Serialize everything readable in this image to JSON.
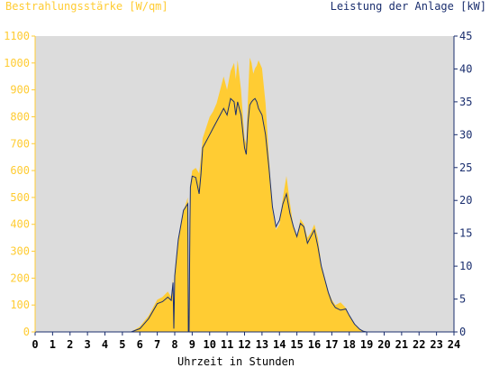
{
  "chart_data": {
    "type": "area",
    "title_left": "Bestrahlungsstärke [W/qm]",
    "title_right": "Leistung der Anlage [kW]",
    "xlabel": "Uhrzeit in Stunden",
    "x_ticks": [
      "0",
      "1",
      "2",
      "3",
      "4",
      "5",
      "6",
      "7",
      "8",
      "9",
      "10",
      "11",
      "12",
      "13",
      "14",
      "15",
      "16",
      "17",
      "18",
      "19",
      "20",
      "21",
      "22",
      "23",
      "24"
    ],
    "y_left_ticks": [
      "0",
      "100",
      "200",
      "300",
      "400",
      "500",
      "600",
      "700",
      "800",
      "900",
      "1000",
      "1100"
    ],
    "y_right_ticks": [
      "0",
      "5",
      "10",
      "15",
      "20",
      "25",
      "30",
      "35",
      "40",
      "45"
    ],
    "xlim": [
      0,
      24
    ],
    "ylim_left": [
      0,
      1100
    ],
    "ylim_right": [
      0,
      45
    ],
    "grid": false,
    "colors": {
      "plot_bg": "#dcdcdc",
      "irradiance_fill": "#ffcc33",
      "left_axis_text": "#ffcc33",
      "right_axis_text": "#1a2e6e",
      "power_line": "#1a2e6e"
    },
    "series": [
      {
        "axis": "left",
        "style": "area",
        "x": [
          0,
          5.5,
          6,
          6.5,
          7,
          7.3,
          7.6,
          7.8,
          7.9,
          7.95,
          8,
          8.2,
          8.5,
          8.75,
          8.78,
          8.82,
          8.87,
          8.9,
          9,
          9.2,
          9.4,
          9.5,
          9.6,
          9.8,
          10,
          10.2,
          10.4,
          10.6,
          10.8,
          11,
          11.2,
          11.4,
          11.5,
          11.6,
          11.8,
          12,
          12.1,
          12.2,
          12.3,
          12.4,
          12.5,
          12.6,
          12.7,
          12.8,
          13,
          13.2,
          13.4,
          13.6,
          13.8,
          14,
          14.2,
          14.4,
          14.6,
          14.8,
          15,
          15.2,
          15.4,
          15.6,
          15.8,
          16,
          16.2,
          16.4,
          16.6,
          16.8,
          17,
          17.2,
          17.5,
          17.8,
          18,
          18.3,
          18.6,
          18.8,
          19,
          24
        ],
        "y": [
          0,
          0,
          20,
          60,
          120,
          130,
          150,
          130,
          200,
          40,
          220,
          350,
          450,
          500,
          0,
          0,
          450,
          550,
          600,
          610,
          590,
          650,
          720,
          760,
          800,
          820,
          850,
          900,
          950,
          900,
          970,
          1000,
          940,
          1010,
          900,
          720,
          700,
          880,
          1020,
          1000,
          960,
          980,
          990,
          1010,
          980,
          850,
          650,
          450,
          380,
          400,
          500,
          580,
          480,
          390,
          350,
          420,
          400,
          350,
          370,
          400,
          350,
          250,
          200,
          150,
          120,
          100,
          110,
          90,
          60,
          30,
          10,
          5,
          0,
          0
        ]
      },
      {
        "axis": "right",
        "style": "line",
        "x": [
          0,
          5.5,
          6,
          6.5,
          7,
          7.3,
          7.6,
          7.8,
          7.9,
          7.95,
          8,
          8.2,
          8.5,
          8.75,
          8.78,
          8.82,
          8.87,
          8.9,
          9,
          9.2,
          9.4,
          9.5,
          9.6,
          9.8,
          10,
          10.2,
          10.4,
          10.6,
          10.8,
          11,
          11.2,
          11.4,
          11.5,
          11.6,
          11.8,
          12,
          12.1,
          12.2,
          12.3,
          12.4,
          12.5,
          12.6,
          12.7,
          12.8,
          13,
          13.2,
          13.4,
          13.6,
          13.8,
          14,
          14.2,
          14.4,
          14.6,
          14.8,
          15,
          15.2,
          15.4,
          15.6,
          15.8,
          16,
          16.2,
          16.4,
          16.6,
          16.8,
          17,
          17.2,
          17.5,
          17.8,
          18,
          18.3,
          18.6,
          18.8,
          19,
          24
        ],
        "y": [
          0,
          0,
          0.5,
          2,
          4.3,
          4.6,
          5.3,
          4.8,
          7.5,
          0.5,
          8.5,
          14,
          18.5,
          19.5,
          0,
          0,
          17,
          22,
          23.7,
          23.5,
          21,
          24,
          28,
          29,
          30,
          31,
          32,
          33,
          34,
          33,
          35.5,
          35,
          33,
          35,
          33,
          28,
          27,
          32,
          34.5,
          35,
          35.3,
          35.5,
          35,
          34,
          33,
          30,
          25,
          19,
          16,
          17,
          19.5,
          21,
          18,
          16,
          14.5,
          16.5,
          16,
          13.5,
          14.5,
          15.5,
          13,
          10,
          8,
          6,
          4.5,
          3.7,
          3.3,
          3.5,
          2.5,
          1.2,
          0.4,
          0.1,
          0,
          0
        ]
      }
    ]
  }
}
